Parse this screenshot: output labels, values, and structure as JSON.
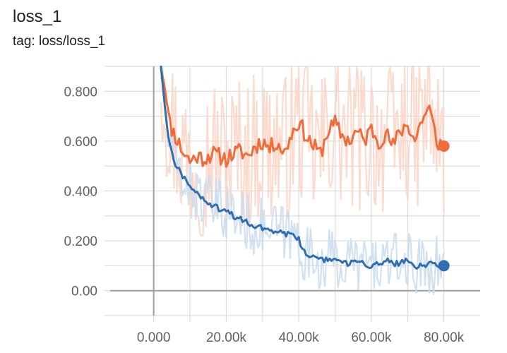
{
  "header": {
    "title": "loss_1",
    "subtitle": "tag: loss/loss_1"
  },
  "colors": {
    "series_orange": "#f26b3a",
    "series_orange_raw": "#fcd3c4",
    "series_blue": "#2f6fb1",
    "series_blue_raw": "#c9dcef",
    "grid": "#d6d6d6",
    "zero_axis": "#9e9e9e",
    "tick_text": "#616161"
  },
  "chart_data": {
    "type": "line",
    "title": "loss_1",
    "subtitle": "tag: loss/loss_1",
    "xlabel": "",
    "ylabel": "",
    "xlim": [
      -12000,
      90000
    ],
    "ylim": [
      -0.1,
      0.9
    ],
    "x_ticks": [
      0,
      10000,
      20000,
      30000,
      40000,
      50000,
      60000,
      70000,
      80000
    ],
    "x_tick_labels": [
      "0.000",
      "",
      "20.00k",
      "",
      "40.00k",
      "",
      "60.00k",
      "",
      "80.00k"
    ],
    "y_ticks": [
      -0.1,
      0.0,
      0.1,
      0.2,
      0.3,
      0.4,
      0.5,
      0.6,
      0.7,
      0.8,
      0.9
    ],
    "y_tick_labels": [
      "",
      "0.00",
      "",
      "0.200",
      "",
      "0.400",
      "",
      "0.600",
      "",
      "0.800",
      ""
    ],
    "grid": true,
    "legend": "none",
    "series": [
      {
        "color": "#f26b3a",
        "raw_color": "#fcd3c4",
        "x": [
          2000,
          3000,
          4000,
          5000,
          6000,
          8000,
          10000,
          12000,
          14000,
          16000,
          18000,
          20000,
          22000,
          24000,
          26000,
          28000,
          30000,
          32000,
          34000,
          36000,
          38000,
          40000,
          42000,
          44000,
          46000,
          48000,
          50000,
          52000,
          54000,
          56000,
          58000,
          60000,
          62000,
          64000,
          66000,
          68000,
          70000,
          72000,
          74000,
          76000,
          78000,
          80000
        ],
        "values": [
          0.9,
          0.82,
          0.72,
          0.65,
          0.62,
          0.56,
          0.52,
          0.54,
          0.53,
          0.55,
          0.54,
          0.53,
          0.55,
          0.56,
          0.54,
          0.58,
          0.6,
          0.57,
          0.6,
          0.55,
          0.63,
          0.68,
          0.62,
          0.58,
          0.55,
          0.64,
          0.67,
          0.62,
          0.6,
          0.64,
          0.6,
          0.65,
          0.6,
          0.63,
          0.58,
          0.64,
          0.67,
          0.6,
          0.69,
          0.73,
          0.6,
          0.58
        ]
      },
      {
        "color": "#2f6fb1",
        "raw_color": "#c9dcef",
        "x": [
          2000,
          3000,
          4000,
          5000,
          6000,
          8000,
          10000,
          12000,
          14000,
          16000,
          18000,
          20000,
          22000,
          24000,
          26000,
          28000,
          30000,
          32000,
          34000,
          36000,
          38000,
          40000,
          41000,
          42000,
          44000,
          46000,
          48000,
          50000,
          52000,
          54000,
          56000,
          58000,
          60000,
          62000,
          64000,
          66000,
          68000,
          70000,
          72000,
          74000,
          76000,
          78000,
          80000
        ],
        "values": [
          0.9,
          0.75,
          0.62,
          0.55,
          0.51,
          0.46,
          0.42,
          0.39,
          0.36,
          0.34,
          0.33,
          0.32,
          0.3,
          0.29,
          0.27,
          0.26,
          0.25,
          0.24,
          0.24,
          0.23,
          0.22,
          0.21,
          0.17,
          0.14,
          0.13,
          0.12,
          0.13,
          0.12,
          0.11,
          0.11,
          0.12,
          0.11,
          0.1,
          0.11,
          0.12,
          0.11,
          0.11,
          0.12,
          0.1,
          0.1,
          0.11,
          0.1,
          0.1
        ]
      }
    ]
  }
}
